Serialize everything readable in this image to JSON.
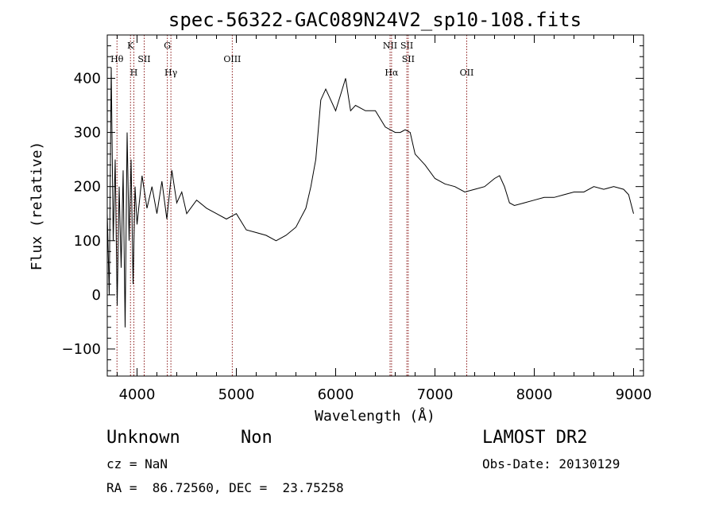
{
  "chart_data": {
    "type": "line",
    "title": "spec-56322-GAC089N24V2_sp10-108.fits",
    "xlabel": "Wavelength (Å)",
    "ylabel": "Flux (relative)",
    "xlim": [
      3700,
      9100
    ],
    "ylim": [
      -150,
      480
    ],
    "xticks": [
      4000,
      5000,
      6000,
      7000,
      8000,
      9000
    ],
    "yticks": [
      -100,
      0,
      100,
      200,
      300,
      400
    ],
    "grid": false,
    "line_color": "#000000",
    "marker_color": "#8b1a1a",
    "series": [
      {
        "x": [
          3700,
          3720,
          3740,
          3760,
          3780,
          3800,
          3820,
          3840,
          3860,
          3880,
          3900,
          3920,
          3940,
          3960,
          3980,
          4000,
          4050,
          4100,
          4150,
          4200,
          4250,
          4300,
          4350,
          4400,
          4450,
          4500,
          4600,
          4700,
          4800,
          4900,
          5000,
          5100,
          5200,
          5300,
          5400,
          5500,
          5600,
          5700,
          5750,
          5780,
          5800,
          5850,
          5900,
          5950,
          6000,
          6050,
          6100,
          6150,
          6200,
          6300,
          6400,
          6500,
          6600,
          6650,
          6700,
          6750,
          6800,
          6900,
          7000,
          7100,
          7200,
          7300,
          7400,
          7500,
          7600,
          7650,
          7700,
          7750,
          7800,
          7900,
          8000,
          8100,
          8200,
          8300,
          8400,
          8500,
          8600,
          8700,
          8800,
          8900,
          8950,
          9000
        ],
        "y": [
          150,
          0,
          420,
          100,
          250,
          -20,
          200,
          50,
          230,
          -60,
          300,
          100,
          250,
          20,
          200,
          130,
          220,
          160,
          200,
          150,
          210,
          140,
          230,
          170,
          190,
          150,
          175,
          160,
          150,
          140,
          150,
          120,
          115,
          110,
          100,
          110,
          125,
          160,
          200,
          230,
          250,
          360,
          380,
          360,
          340,
          370,
          400,
          340,
          350,
          340,
          340,
          310,
          300,
          300,
          305,
          300,
          260,
          240,
          215,
          205,
          200,
          190,
          195,
          200,
          215,
          220,
          200,
          170,
          165,
          170,
          175,
          180,
          180,
          185,
          190,
          190,
          200,
          195,
          200,
          195,
          185,
          150
        ]
      }
    ],
    "lines": [
      {
        "label": "Hθ",
        "x": 3798,
        "row": 2
      },
      {
        "label": "K",
        "x": 3934,
        "row": 1
      },
      {
        "label": "H",
        "x": 3968,
        "row": 3
      },
      {
        "label": "SII",
        "x": 4072,
        "row": 2
      },
      {
        "label": "G",
        "x": 4305,
        "row": 1
      },
      {
        "label": "Hγ",
        "x": 4341,
        "row": 3
      },
      {
        "label": "OIII",
        "x": 4959,
        "row": 2
      },
      {
        "label": "NII",
        "x": 6548,
        "row": 1
      },
      {
        "label": "Hα",
        "x": 6563,
        "row": 3
      },
      {
        "label": "SII",
        "x": 6717,
        "row": 1
      },
      {
        "label": "SII",
        "x": 6731,
        "row": 2
      },
      {
        "label": "OII",
        "x": 7320,
        "row": 3
      }
    ]
  },
  "info": {
    "object_class": "Unknown",
    "subclass": "Non",
    "survey": "LAMOST DR2",
    "cz": "cz = NaN",
    "obs_date": "Obs-Date: 20130129",
    "coords": "RA =  86.72560, DEC =  23.75258"
  }
}
